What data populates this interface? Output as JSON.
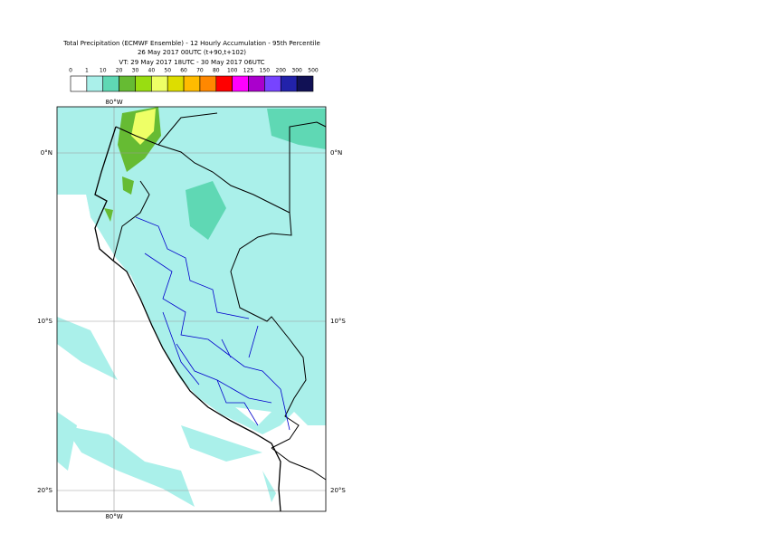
{
  "header": {
    "title": "Total Precipitation (ECMWF Ensemble) - 12 Hourly Accumulation - 95th Percentile",
    "subtitle": "26 May 2017 00UTC (t+90,t+102)",
    "valid_time": "VT: 29 May 2017 18UTC - 30 May 2017 06UTC"
  },
  "legend": {
    "labels": [
      0,
      1,
      10,
      20,
      30,
      40,
      50,
      60,
      70,
      80,
      100,
      125,
      150,
      200,
      300,
      500
    ],
    "colors": [
      "#ffffff",
      "#aaf0ea",
      "#5fd8b4",
      "#66bb33",
      "#99dd11",
      "#eeff66",
      "#dddd00",
      "#ffbb00",
      "#ff8800",
      "#ff0000",
      "#ff00ff",
      "#aa00cc",
      "#7744ff",
      "#2222aa",
      "#111155"
    ]
  },
  "map": {
    "longitude_labels": [
      "80°W"
    ],
    "latitude_labels": [
      "0°N",
      "10°S",
      "20°S"
    ]
  }
}
